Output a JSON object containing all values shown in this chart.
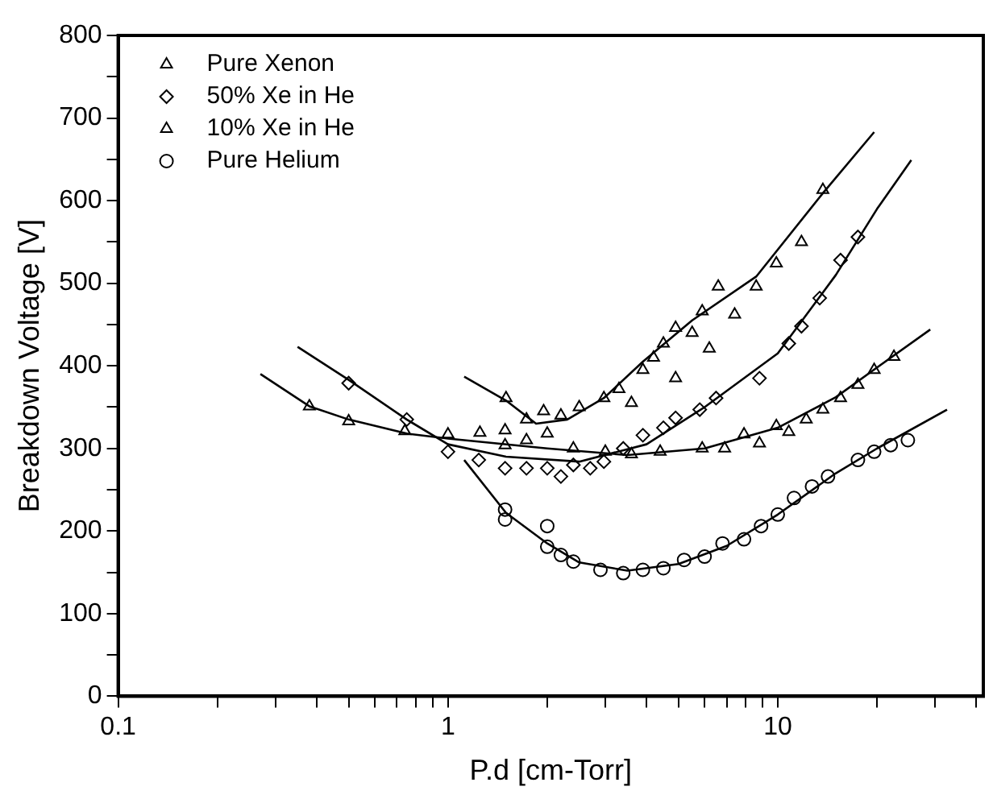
{
  "chart_data": {
    "type": "scatter",
    "xlabel": "P.d [cm-Torr]",
    "ylabel": "Breakdown Voltage [V]",
    "log": "x",
    "xlim": [
      0.1,
      42
    ],
    "ylim": [
      0,
      800
    ],
    "xticks": [
      0.1,
      {
        "value": 0.2,
        "label": null
      },
      {
        "value": 0.3,
        "label": null
      },
      {
        "value": 0.4,
        "label": null
      },
      {
        "value": 0.5,
        "label": null
      },
      {
        "value": 0.6,
        "label": null
      },
      {
        "value": 0.7,
        "label": null
      },
      {
        "value": 0.8,
        "label": null
      },
      {
        "value": 0.9,
        "label": null
      },
      1,
      {
        "value": 2,
        "label": null
      },
      {
        "value": 3,
        "label": null
      },
      {
        "value": 4,
        "label": null
      },
      {
        "value": 5,
        "label": null
      },
      {
        "value": 6,
        "label": null
      },
      {
        "value": 7,
        "label": null
      },
      {
        "value": 8,
        "label": null
      },
      {
        "value": 9,
        "label": null
      },
      10,
      {
        "value": 20,
        "label": null
      },
      {
        "value": 30,
        "label": null
      },
      {
        "value": 40,
        "label": null
      }
    ],
    "yticks": [
      0,
      {
        "value": 50,
        "label": null
      },
      100,
      {
        "value": 150,
        "label": null
      },
      200,
      {
        "value": 250,
        "label": null
      },
      300,
      {
        "value": 350,
        "label": null
      },
      400,
      {
        "value": 450,
        "label": null
      },
      500,
      {
        "value": 550,
        "label": null
      },
      600,
      {
        "value": 650,
        "label": null
      },
      700,
      {
        "value": 750,
        "label": null
      },
      800
    ],
    "grid": false,
    "legend": "top left",
    "series": [
      {
        "name": "Pure Xenon",
        "type": "scatter",
        "marker": "triangle",
        "color": "#000000",
        "x": [
          1.5,
          1.73,
          1.95,
          2.2,
          2.5,
          2.97,
          3.3,
          3.6,
          3.9,
          4.2,
          4.5,
          4.9,
          4.9,
          5.5,
          5.9,
          6.2,
          6.6,
          7.4,
          8.6,
          9.9,
          11.8,
          13.7
        ],
        "values": [
          361,
          335,
          345,
          340,
          350,
          361,
          372,
          355,
          395,
          410,
          427,
          385,
          446,
          440,
          466,
          421,
          496,
          462,
          496,
          524,
          550,
          613
        ]
      },
      {
        "name": "50% Xe in He",
        "type": "scatter",
        "marker": "diamond",
        "color": "#000000",
        "x": [
          0.5,
          0.75,
          1.0,
          1.24,
          1.49,
          1.73,
          2.0,
          2.2,
          2.4,
          2.7,
          2.97,
          3.4,
          3.9,
          4.5,
          4.9,
          5.8,
          6.5,
          8.8,
          10.8,
          11.8,
          13.4,
          15.5,
          17.5
        ],
        "values": [
          379,
          335,
          296,
          286,
          276,
          276,
          276,
          266,
          280,
          276,
          284,
          300,
          316,
          325,
          337,
          347,
          361,
          385,
          427,
          448,
          482,
          528,
          556
        ]
      },
      {
        "name": "10% Xe in He",
        "type": "scatter",
        "marker": "triangle",
        "color": "#000000",
        "x": [
          0.38,
          0.5,
          0.74,
          1.0,
          1.25,
          1.49,
          1.49,
          1.73,
          2.0,
          2.4,
          3.0,
          3.6,
          4.4,
          5.9,
          6.9,
          7.9,
          8.8,
          9.9,
          10.8,
          12.2,
          13.7,
          15.5,
          17.5,
          19.6,
          22.5
        ],
        "values": [
          351,
          333,
          321,
          317,
          319,
          322,
          304,
          310,
          318,
          300,
          296,
          293,
          296,
          300,
          300,
          317,
          306,
          327,
          320,
          335,
          347,
          361,
          377,
          395,
          411
        ]
      },
      {
        "name": "Pure Helium",
        "type": "scatter",
        "marker": "circle",
        "color": "#000000",
        "x": [
          1.49,
          1.49,
          2.0,
          2.0,
          2.2,
          2.4,
          2.9,
          3.4,
          3.9,
          4.5,
          5.2,
          6.0,
          6.8,
          7.9,
          8.9,
          10,
          11.2,
          12.7,
          14.2,
          17.5,
          19.6,
          22,
          24.8
        ],
        "values": [
          226,
          214,
          206,
          181,
          171,
          163,
          153,
          149,
          153,
          155,
          165,
          169,
          185,
          190,
          206,
          220,
          240,
          254,
          266,
          286,
          296,
          304,
          310
        ]
      },
      {
        "type": "line",
        "marker": "none",
        "color": "#000000",
        "x": [
          1.12,
          1.5,
          1.85,
          2.3,
          2.97,
          3.9,
          5.5,
          8.6,
          13.7,
          19.6
        ],
        "values": [
          387,
          358,
          330,
          335,
          361,
          405,
          455,
          508,
          609,
          683
        ]
      },
      {
        "type": "line",
        "marker": "none",
        "color": "#000000",
        "x": [
          0.35,
          0.5,
          0.75,
          1,
          1.5,
          2.5,
          4,
          6,
          10,
          15,
          20,
          25.4
        ],
        "values": [
          423,
          383,
          335,
          305,
          290,
          284,
          305,
          350,
          415,
          510,
          590,
          649
        ]
      },
      {
        "type": "line",
        "marker": "none",
        "color": "#000000",
        "x": [
          0.27,
          0.38,
          0.5,
          0.75,
          1,
          2,
          3.5,
          6,
          10,
          15,
          20,
          29
        ],
        "values": [
          390,
          351,
          335,
          318,
          312,
          300,
          292,
          300,
          325,
          362,
          398,
          444
        ]
      },
      {
        "type": "line",
        "marker": "none",
        "color": "#000000",
        "x": [
          1.12,
          1.5,
          2,
          2.5,
          3.5,
          5,
          7,
          10,
          15,
          20,
          32.6
        ],
        "values": [
          286,
          222,
          185,
          162,
          152,
          160,
          182,
          220,
          270,
          300,
          347
        ]
      }
    ]
  }
}
